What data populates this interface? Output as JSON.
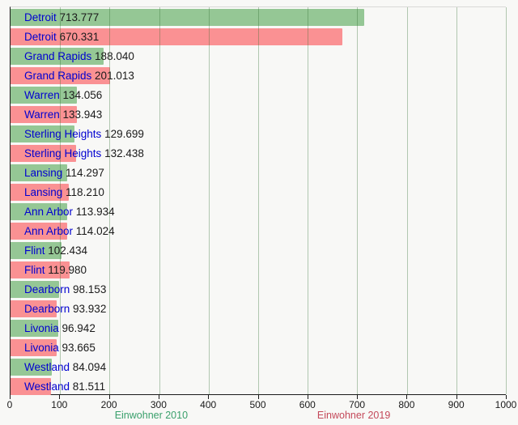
{
  "chart_data": {
    "type": "bar",
    "orientation": "horizontal",
    "title": "",
    "categories": [
      "Detroit",
      "Grand Rapids",
      "Warren",
      "Sterling Heights",
      "Lansing",
      "Ann Arbor",
      "Flint",
      "Dearborn",
      "Livonia",
      "Westland"
    ],
    "series": [
      {
        "name": "Einwohner 2010",
        "bar_color": "#95c795",
        "label_color": "#3aa06c",
        "values": [
          713777,
          188040,
          134056,
          129699,
          114297,
          113934,
          102434,
          98153,
          96942,
          84094
        ],
        "value_labels": [
          "713.777",
          "188.040",
          "134.056",
          "129.699",
          "114.297",
          "113.934",
          "102.434",
          "98.153",
          "96.942",
          "84.094"
        ]
      },
      {
        "name": "Einwohner 2019",
        "bar_color": "#fa9193",
        "label_color": "#c4495a",
        "values": [
          670331,
          201013,
          133943,
          132438,
          118210,
          114024,
          119980,
          93932,
          93665,
          81511
        ],
        "value_labels": [
          "670.331",
          "201.013",
          "133.943",
          "132.438",
          "118.210",
          "114.024",
          "119.980",
          "93.932",
          "93.665",
          "81.511"
        ]
      }
    ],
    "x_axis": {
      "min": 0,
      "max": 1000000,
      "tick_labels": [
        "0",
        "100",
        "200",
        "300",
        "400",
        "500",
        "600",
        "700",
        "800",
        "900",
        "1000"
      ]
    },
    "grid": true,
    "grid_color": "rgba(45,110,45,0.35)",
    "city_label_color": "#0000d0",
    "value_label_color": "#1a1a1a",
    "legend_position": "bottom",
    "legend_centers_pct": [
      29.2,
      68.3
    ]
  }
}
